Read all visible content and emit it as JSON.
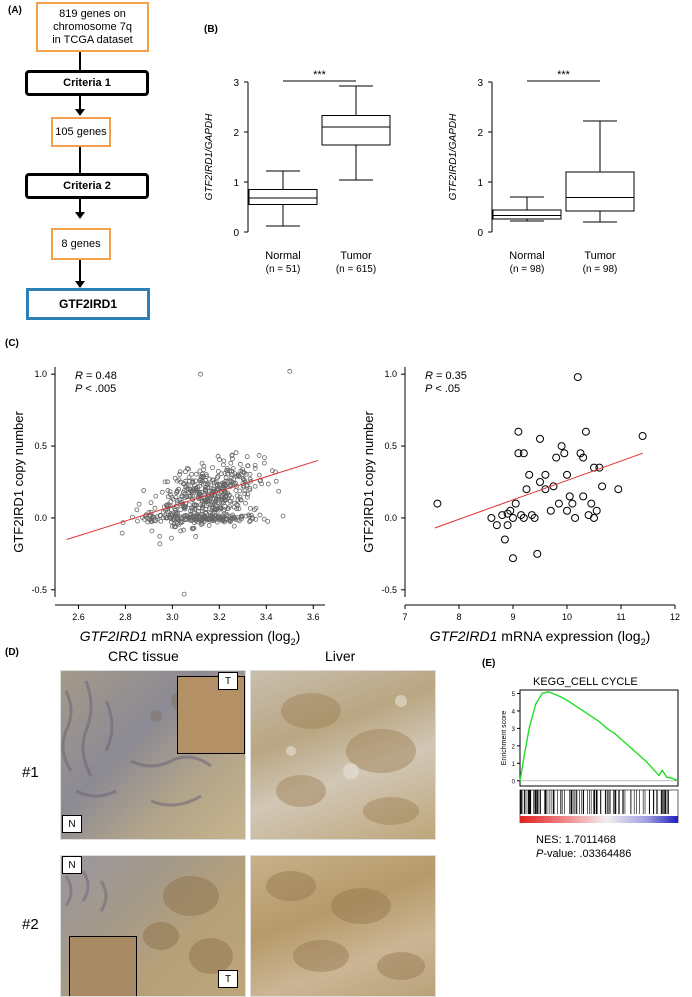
{
  "panels": {
    "A": "(A)",
    "B": "(B)",
    "C": "(C)",
    "D": "(D)",
    "E": "(E)"
  },
  "flowchart": {
    "start": [
      "819 genes on",
      "chromosome 7q",
      "in TCGA dataset"
    ],
    "criteria1": "Criteria 1",
    "step2": "105  genes",
    "criteria2": "Criteria 2",
    "step3": "8 genes",
    "result": "GTF2IRD1"
  },
  "colors": {
    "orange": "#f2a04c",
    "blue": "#2c7fb8",
    "red": "#e03030",
    "green": "#22dd22"
  },
  "chart_data": [
    {
      "type": "box",
      "ylabel": "GTF2IRD1/GAPDH",
      "ylim": [
        0,
        3
      ],
      "yticks": [
        "0",
        "1",
        "2",
        "3"
      ],
      "significance": "***",
      "groups": [
        {
          "name": "Normal",
          "n": "(n = 51)",
          "min": 0.12,
          "q1": 0.55,
          "median": 0.68,
          "q3": 0.85,
          "max": 1.22
        },
        {
          "name": "Tumor",
          "n": "(n = 615)",
          "min": 1.04,
          "q1": 1.74,
          "median": 2.1,
          "q3": 2.33,
          "max": 2.92
        }
      ]
    },
    {
      "type": "box",
      "ylabel": "GTF2IRD1/GAPDH",
      "ylim": [
        0,
        3
      ],
      "yticks": [
        "0",
        "1",
        "2",
        "3"
      ],
      "significance": "***",
      "groups": [
        {
          "name": "Normal",
          "n": "(n = 98)",
          "min": 0.22,
          "q1": 0.26,
          "median": 0.33,
          "q3": 0.44,
          "max": 0.7
        },
        {
          "name": "Tumor",
          "n": "(n = 98)",
          "min": 0.2,
          "q1": 0.42,
          "median": 0.69,
          "q3": 1.2,
          "max": 2.22
        }
      ]
    },
    {
      "type": "scatter",
      "xlabel_italic": "GTF2IRD1",
      "xlabel_rest": " mRNA expression (log",
      "xlabel_sub": "2",
      "xlabel_end": ")",
      "ylabel": "GTF2IRD1  copy number",
      "xlim": [
        2.5,
        3.65
      ],
      "ylim": [
        -0.55,
        1.05
      ],
      "xticks": [
        "2.6",
        "2.8",
        "3.0",
        "3.2",
        "3.4",
        "3.6"
      ],
      "yticks": [
        "-0.5",
        "0.0",
        "0.5",
        "1.0"
      ],
      "R": "0.48",
      "P": "< .005",
      "fit": {
        "x": [
          2.55,
          3.62
        ],
        "y": [
          -0.15,
          0.4
        ]
      },
      "n_points": 600
    },
    {
      "type": "scatter",
      "xlabel_italic": "GTF2IRD1",
      "xlabel_rest": " mRNA expression (log",
      "xlabel_sub": "2",
      "xlabel_end": ")",
      "ylabel": "GTF2IRD1  copy number",
      "xlim": [
        7,
        12
      ],
      "ylim": [
        -0.55,
        1.05
      ],
      "xticks": [
        "7",
        "8",
        "9",
        "10",
        "11",
        "12"
      ],
      "yticks": [
        "-0.5",
        "0.0",
        "0.5",
        "1.0"
      ],
      "R": "0.35",
      "P": "< .05",
      "fit": {
        "x": [
          7.55,
          11.4
        ],
        "y": [
          -0.07,
          0.45
        ]
      },
      "points": [
        [
          7.6,
          0.1
        ],
        [
          8.6,
          0.0
        ],
        [
          8.7,
          -0.05
        ],
        [
          8.8,
          0.02
        ],
        [
          8.85,
          -0.15
        ],
        [
          8.9,
          -0.05
        ],
        [
          8.9,
          0.03
        ],
        [
          9.0,
          -0.28
        ],
        [
          9.0,
          0.0
        ],
        [
          9.05,
          0.1
        ],
        [
          9.1,
          0.6
        ],
        [
          9.1,
          0.45
        ],
        [
          9.15,
          0.02
        ],
        [
          9.2,
          0.0
        ],
        [
          9.25,
          0.2
        ],
        [
          9.3,
          0.3
        ],
        [
          9.35,
          0.02
        ],
        [
          9.4,
          0.0
        ],
        [
          9.45,
          -0.25
        ],
        [
          9.5,
          0.25
        ],
        [
          9.5,
          0.55
        ],
        [
          9.6,
          0.3
        ],
        [
          9.7,
          0.05
        ],
        [
          9.75,
          0.22
        ],
        [
          9.8,
          0.42
        ],
        [
          9.85,
          0.1
        ],
        [
          9.9,
          0.5
        ],
        [
          9.95,
          0.45
        ],
        [
          10.0,
          0.05
        ],
        [
          10.0,
          0.3
        ],
        [
          10.05,
          0.15
        ],
        [
          10.1,
          0.1
        ],
        [
          10.15,
          0.0
        ],
        [
          10.2,
          0.98
        ],
        [
          10.25,
          0.45
        ],
        [
          10.3,
          0.42
        ],
        [
          10.35,
          0.6
        ],
        [
          10.4,
          0.02
        ],
        [
          10.45,
          0.1
        ],
        [
          10.5,
          0.0
        ],
        [
          10.5,
          0.35
        ],
        [
          10.55,
          0.05
        ],
        [
          10.6,
          0.35
        ],
        [
          10.65,
          0.22
        ],
        [
          10.95,
          0.2
        ],
        [
          11.4,
          0.57
        ],
        [
          9.2,
          0.45
        ],
        [
          9.6,
          0.2
        ],
        [
          10.3,
          0.15
        ],
        [
          8.95,
          0.05
        ]
      ]
    },
    {
      "type": "line",
      "title": "KEGG_CELL CYCLE",
      "ylabel": "Enrichment score",
      "yticks": [
        "0",
        "1",
        "2",
        "3",
        "4",
        "5"
      ],
      "ylim": [
        -0.3,
        5.2
      ],
      "x": [
        0,
        0.03,
        0.06,
        0.1,
        0.14,
        0.18,
        0.22,
        0.26,
        0.3,
        0.35,
        0.4,
        0.45,
        0.5,
        0.55,
        0.6,
        0.65,
        0.7,
        0.75,
        0.8,
        0.85,
        0.88,
        0.9,
        0.93,
        0.96,
        1.0
      ],
      "y": [
        0,
        1.6,
        3.1,
        4.4,
        5.0,
        5.1,
        4.95,
        4.8,
        4.6,
        4.3,
        4.0,
        3.7,
        3.4,
        3.0,
        2.7,
        2.3,
        1.9,
        1.5,
        1.1,
        0.6,
        0.3,
        0.6,
        0.2,
        0.15,
        0
      ]
    }
  ],
  "histology": {
    "col1": "CRC tissue",
    "col2": "Liver",
    "row1": "#1",
    "row2": "#2",
    "tagT": "T",
    "tagN": "N"
  },
  "gsea": {
    "nes": "NES: 1.7011468",
    "pvalue_italic": "P",
    "pvalue_rest": "-value: .03364486"
  }
}
